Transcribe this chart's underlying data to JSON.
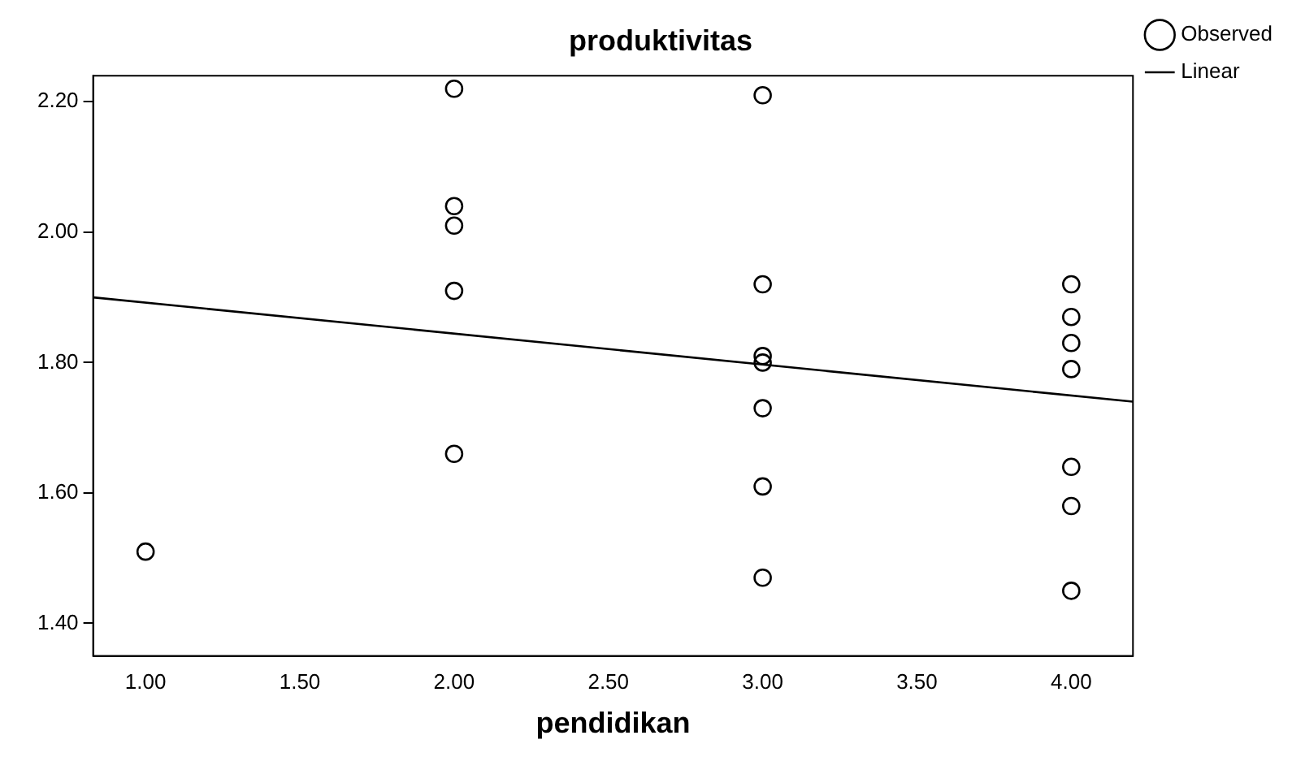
{
  "chart_data": {
    "type": "scatter",
    "title": "produktivitas",
    "xlabel": "pendidikan",
    "xlim": [
      0.83,
      4.2
    ],
    "ylim": [
      1.35,
      2.24
    ],
    "xticks": [
      {
        "value": 1,
        "label": "1.00"
      },
      {
        "value": 1.5,
        "label": "1.50"
      },
      {
        "value": 2,
        "label": "2.00"
      },
      {
        "value": 2.5,
        "label": "2.50"
      },
      {
        "value": 3,
        "label": "3.00"
      },
      {
        "value": 3.5,
        "label": "3.50"
      },
      {
        "value": 4,
        "label": "4.00"
      }
    ],
    "yticks": [
      {
        "value": 1.4,
        "label": "1.40"
      },
      {
        "value": 1.6,
        "label": "1.60"
      },
      {
        "value": 1.8,
        "label": "1.80"
      },
      {
        "value": 2,
        "label": "2.00"
      },
      {
        "value": 2.2,
        "label": "2.20"
      }
    ],
    "grid": false,
    "legend": "top right",
    "marker": "circle",
    "series": [
      {
        "name": "Observed",
        "color": "#000000",
        "x": [
          1,
          2,
          2,
          2,
          2,
          2,
          3,
          3,
          3,
          3,
          3,
          3,
          3,
          4,
          4,
          4,
          4,
          4,
          4,
          4
        ],
        "values": [
          1.51,
          2.22,
          2.04,
          2.01,
          1.91,
          1.66,
          2.21,
          1.92,
          1.81,
          1.8,
          1.73,
          1.61,
          1.47,
          1.92,
          1.87,
          1.83,
          1.79,
          1.64,
          1.58,
          1.45
        ]
      },
      {
        "name": "Linear",
        "type": "line",
        "color": "#000000",
        "marker": "none",
        "x": [
          0.83,
          4.2
        ],
        "values": [
          1.9,
          1.74
        ]
      }
    ]
  }
}
